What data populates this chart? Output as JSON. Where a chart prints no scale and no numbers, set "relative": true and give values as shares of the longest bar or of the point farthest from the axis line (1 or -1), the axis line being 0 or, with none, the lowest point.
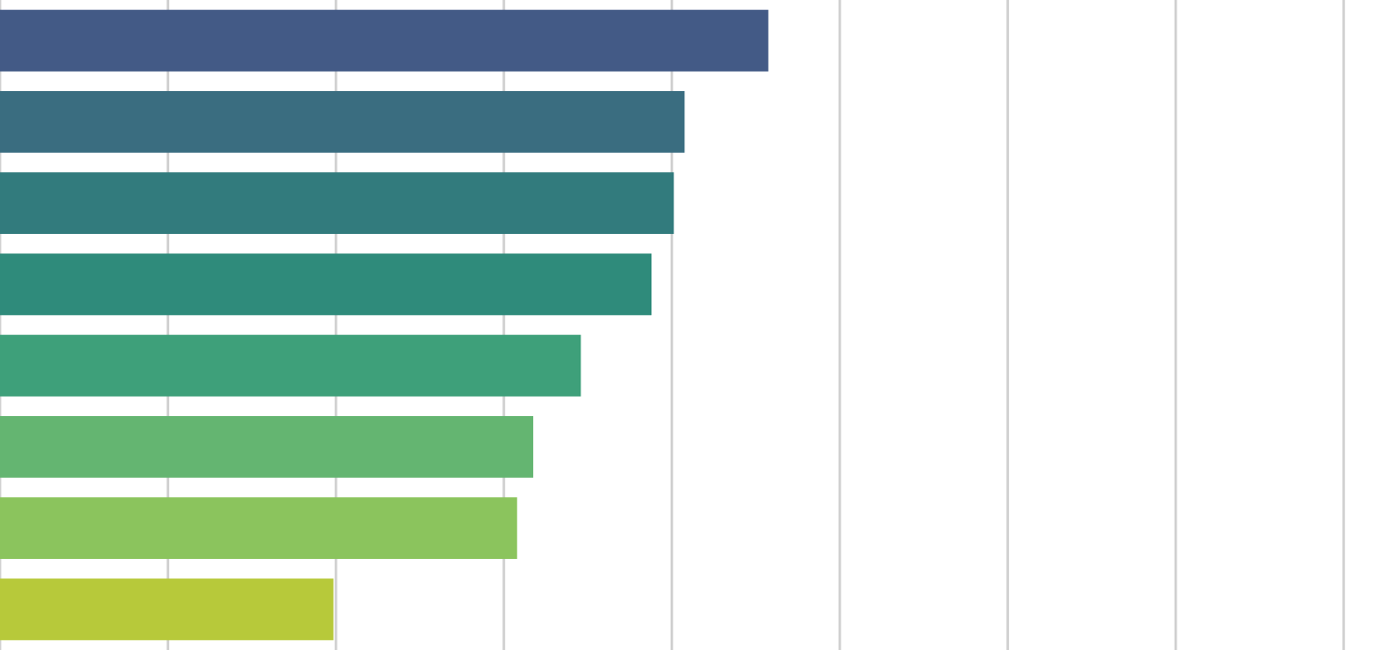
{
  "chart_data": {
    "type": "bar",
    "orientation": "horizontal",
    "relative": true,
    "categories": [
      null,
      null,
      null,
      null,
      null,
      null,
      null,
      null
    ],
    "values": [
      1,
      0.891,
      0.877,
      0.848,
      0.756,
      0.694,
      0.673,
      0.434
    ],
    "colors": [
      "#435a86",
      "#3a6d80",
      "#327b7d",
      "#2f8b7b",
      "#3ea07a",
      "#64b571",
      "#8bc45d",
      "#b7c93a"
    ],
    "grid": "x"
  }
}
